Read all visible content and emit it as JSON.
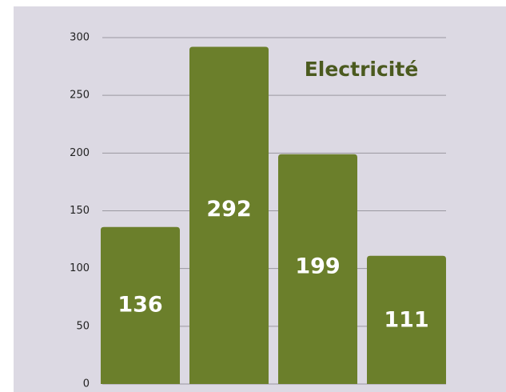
{
  "chart_data": {
    "type": "bar",
    "title": "Electricité",
    "values": [
      136,
      292,
      199,
      111
    ],
    "color": "#6b7f2b",
    "ylim": [
      0,
      300
    ],
    "yticks": [
      0,
      50,
      100,
      150,
      200,
      250,
      300
    ],
    "grid": true
  }
}
